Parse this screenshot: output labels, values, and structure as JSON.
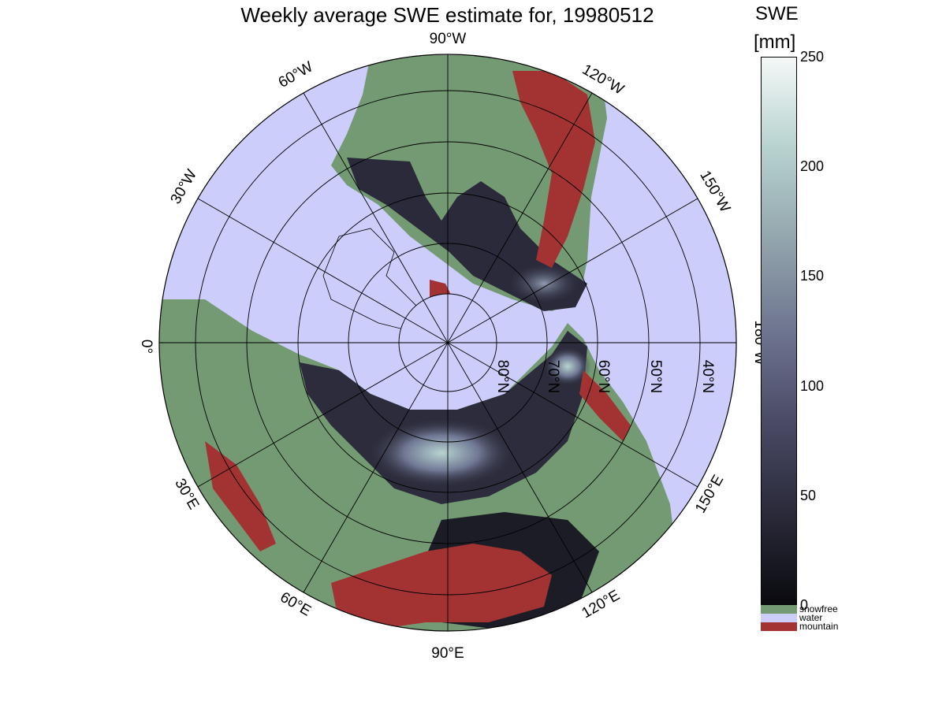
{
  "title": "Weekly average SWE estimate for, 19980512",
  "colorbar": {
    "title_line1": "SWE",
    "title_line2": "[mm]",
    "ticks": [
      "250",
      "200",
      "150",
      "100",
      "50",
      "0"
    ],
    "tick_values": [
      250,
      200,
      150,
      100,
      50,
      0
    ],
    "range": [
      0,
      250
    ],
    "gradient_colors": [
      "#0a0a0f",
      "#2a2a3a",
      "#4a4a66",
      "#6e7590",
      "#93a5ad",
      "#b6d2cf",
      "#f4f8f7"
    ],
    "categories": [
      {
        "label": "snowfree",
        "color": "#749a73"
      },
      {
        "label": "water",
        "color": "#cccdfb"
      },
      {
        "label": "mountain",
        "color": "#a33333"
      }
    ]
  },
  "longitude_labels": [
    "90°W",
    "120°W",
    "150°W",
    "180°W",
    "150°E",
    "120°E",
    "90°E",
    "60°E",
    "30°E",
    "0°",
    "30°W",
    "60°W"
  ],
  "latitude_labels": [
    "80°N",
    "70°N",
    "60°N",
    "50°N",
    "40°N"
  ],
  "colors": {
    "water": "#cccdfb",
    "land": "#749a73",
    "mountain": "#a33333",
    "snow_dark": "#1a1a22",
    "snow_mid": "#5a5c78",
    "snow_light": "#a7c4c4"
  }
}
